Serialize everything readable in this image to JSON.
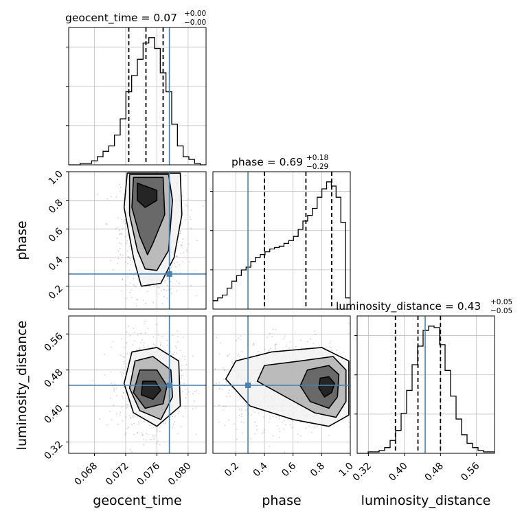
{
  "chart_data": {
    "type": "corner",
    "parameters": [
      "geocent_time",
      "phase",
      "luminosity_distance"
    ],
    "ranges": {
      "geocent_time": [
        0.0647,
        0.0823
      ],
      "phase": [
        0.04,
        1.0
      ],
      "luminosity_distance": [
        0.295,
        0.6
      ]
    },
    "injection": {
      "geocent_time": 0.0776,
      "phase": 0.285,
      "luminosity_distance": 0.446
    },
    "quantiles": {
      "geocent_time": [
        0.0724,
        0.0746,
        0.0768
      ],
      "phase": [
        0.4,
        0.69,
        0.87
      ],
      "luminosity_distance": [
        0.38,
        0.43,
        0.48
      ]
    },
    "titles": {
      "geocent_time": {
        "label": "geocent_time = 0.07",
        "plus": "+0.00",
        "minus": "−0.00"
      },
      "phase": {
        "label": "phase = 0.69",
        "plus": "+0.18",
        "minus": "−0.29"
      },
      "luminosity_distance": {
        "label": "luminosity_distance = 0.43",
        "plus": "+0.05",
        "minus": "−0.05"
      }
    },
    "ticks": {
      "geocent_time": [
        "0.068",
        "0.072",
        "0.076",
        "0.080"
      ],
      "phase_x": [
        "0.2",
        "0.4",
        "0.6",
        "0.8",
        "1.0"
      ],
      "phase_y": [
        "0.2",
        "0.4",
        "0.6",
        "0.8",
        "1.0"
      ],
      "luminosity_distance_x": [
        "0.32",
        "0.40",
        "0.48",
        "0.56"
      ],
      "luminosity_distance_y": [
        "0.32",
        "0.40",
        "0.48",
        "0.56"
      ]
    },
    "axis_labels": {
      "geocent_time": "geocent_time",
      "phase": "phase",
      "luminosity_distance": "luminosity_distance"
    },
    "histograms": {
      "geocent_time": {
        "bins": [
          0.0647,
          0.0823
        ],
        "counts": [
          0,
          0,
          1,
          1,
          3,
          6,
          10,
          14,
          22,
          34,
          54,
          66,
          78,
          90,
          94,
          86,
          68,
          54,
          30,
          14,
          6,
          4,
          1,
          0
        ]
      },
      "phase": {
        "bins": [
          0.04,
          1.0
        ],
        "counts": [
          6,
          8,
          10,
          15,
          20,
          24,
          28,
          30,
          34,
          37,
          39,
          41,
          43,
          44,
          45,
          47,
          49,
          52,
          57,
          63,
          67,
          72,
          80,
          86,
          91,
          88,
          80,
          62,
          8
        ]
      },
      "luminosity_distance": {
        "bins": [
          0.295,
          0.6
        ],
        "counts": [
          0,
          0,
          1,
          1,
          2,
          4,
          9,
          16,
          28,
          44,
          62,
          75,
          86,
          89,
          88,
          76,
          58,
          40,
          24,
          13,
          7,
          4,
          2,
          1,
          1
        ]
      }
    },
    "contours_2d": {
      "phase_vs_geocent_time": [
        {
          "level": 0.39,
          "points": [
            [
              0.0735,
              0.92
            ],
            [
              0.076,
              0.87
            ],
            [
              0.076,
              0.8
            ],
            [
              0.0745,
              0.75
            ],
            [
              0.0735,
              0.8
            ]
          ]
        },
        {
          "level": 0.86,
          "points": [
            [
              0.073,
              0.96
            ],
            [
              0.0768,
              0.96
            ],
            [
              0.077,
              0.7
            ],
            [
              0.0755,
              0.5
            ],
            [
              0.0748,
              0.42
            ],
            [
              0.0738,
              0.55
            ],
            [
              0.0728,
              0.75
            ]
          ]
        },
        {
          "level": 0.99,
          "points": [
            [
              0.0725,
              0.98
            ],
            [
              0.0775,
              0.98
            ],
            [
              0.078,
              0.8
            ],
            [
              0.0775,
              0.45
            ],
            [
              0.076,
              0.31
            ],
            [
              0.0745,
              0.32
            ],
            [
              0.0735,
              0.45
            ],
            [
              0.0725,
              0.7
            ]
          ]
        },
        {
          "level": 0.999,
          "points": [
            [
              0.0722,
              0.99
            ],
            [
              0.079,
              0.99
            ],
            [
              0.0792,
              0.7
            ],
            [
              0.0782,
              0.4
            ],
            [
              0.0765,
              0.22
            ],
            [
              0.074,
              0.2
            ],
            [
              0.073,
              0.4
            ],
            [
              0.0718,
              0.75
            ]
          ]
        }
      ],
      "luminosity_distance_vs_geocent_time": [
        {
          "level": 0.39,
          "points": [
            [
              0.074,
              0.425
            ],
            [
              0.0755,
              0.415
            ],
            [
              0.0765,
              0.435
            ],
            [
              0.0758,
              0.455
            ],
            [
              0.0742,
              0.455
            ]
          ]
        },
        {
          "level": 0.86,
          "points": [
            [
              0.073,
              0.43
            ],
            [
              0.0745,
              0.395
            ],
            [
              0.0768,
              0.405
            ],
            [
              0.0773,
              0.445
            ],
            [
              0.076,
              0.48
            ],
            [
              0.0738,
              0.48
            ]
          ]
        },
        {
          "level": 0.99,
          "points": [
            [
              0.0725,
              0.44
            ],
            [
              0.0738,
              0.39
            ],
            [
              0.0765,
              0.37
            ],
            [
              0.078,
              0.42
            ],
            [
              0.0778,
              0.48
            ],
            [
              0.0755,
              0.51
            ],
            [
              0.0732,
              0.5
            ]
          ]
        },
        {
          "level": 0.999,
          "points": [
            [
              0.0718,
              0.45
            ],
            [
              0.073,
              0.385
            ],
            [
              0.076,
              0.355
            ],
            [
              0.079,
              0.4
            ],
            [
              0.0788,
              0.5
            ],
            [
              0.076,
              0.53
            ],
            [
              0.0728,
              0.52
            ]
          ]
        }
      ],
      "luminosity_distance_vs_phase": [
        {
          "level": 0.39,
          "points": [
            [
              0.78,
              0.44
            ],
            [
              0.82,
              0.42
            ],
            [
              0.87,
              0.43
            ],
            [
              0.89,
              0.45
            ],
            [
              0.85,
              0.465
            ],
            [
              0.79,
              0.462
            ]
          ]
        },
        {
          "level": 0.86,
          "points": [
            [
              0.65,
              0.445
            ],
            [
              0.72,
              0.41
            ],
            [
              0.85,
              0.395
            ],
            [
              0.91,
              0.42
            ],
            [
              0.92,
              0.47
            ],
            [
              0.85,
              0.49
            ],
            [
              0.7,
              0.48
            ]
          ]
        },
        {
          "level": 0.99,
          "points": [
            [
              0.35,
              0.455
            ],
            [
              0.55,
              0.42
            ],
            [
              0.75,
              0.385
            ],
            [
              0.9,
              0.375
            ],
            [
              0.97,
              0.41
            ],
            [
              0.97,
              0.48
            ],
            [
              0.88,
              0.51
            ],
            [
              0.65,
              0.5
            ],
            [
              0.4,
              0.49
            ]
          ]
        },
        {
          "level": 0.999,
          "points": [
            [
              0.13,
              0.46
            ],
            [
              0.3,
              0.4
            ],
            [
              0.6,
              0.37
            ],
            [
              0.85,
              0.355
            ],
            [
              0.99,
              0.38
            ],
            [
              0.99,
              0.5
            ],
            [
              0.8,
              0.53
            ],
            [
              0.45,
              0.52
            ],
            [
              0.2,
              0.5
            ]
          ]
        }
      ]
    },
    "grid": true,
    "colors": {
      "truth": "#4682b4",
      "hist": "#000000",
      "quantile": "#000000",
      "grid": "#bdbdbd"
    }
  }
}
